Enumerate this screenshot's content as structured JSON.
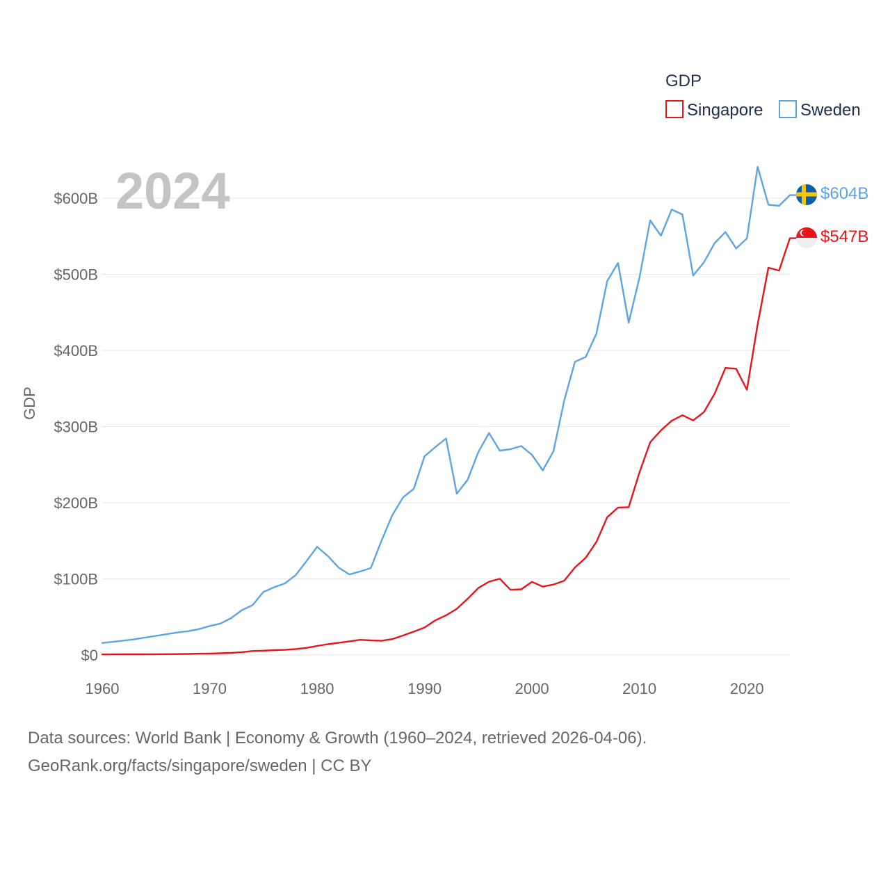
{
  "chart_data": {
    "type": "line",
    "title": "GDP",
    "year_display": "2024",
    "ylabel": "GDP",
    "xlabel": "",
    "xlim": [
      1960,
      2024
    ],
    "ylim": [
      0,
      650
    ],
    "x_ticks": [
      1960,
      1970,
      1980,
      1990,
      2000,
      2010,
      2020
    ],
    "x_tick_labels": [
      "1960",
      "1970",
      "1980",
      "1990",
      "2000",
      "2010",
      "2020"
    ],
    "y_ticks": [
      0,
      100,
      200,
      300,
      400,
      500,
      600
    ],
    "y_tick_labels": [
      "$0",
      "$100B",
      "$200B",
      "$300B",
      "$400B",
      "$500B",
      "$600B"
    ],
    "grid": true,
    "legend_position": "top-right",
    "x": [
      1960,
      1961,
      1962,
      1963,
      1964,
      1965,
      1966,
      1967,
      1968,
      1969,
      1970,
      1971,
      1972,
      1973,
      1974,
      1975,
      1976,
      1977,
      1978,
      1979,
      1980,
      1981,
      1982,
      1983,
      1984,
      1985,
      1986,
      1987,
      1988,
      1989,
      1990,
      1991,
      1992,
      1993,
      1994,
      1995,
      1996,
      1997,
      1998,
      1999,
      2000,
      2001,
      2002,
      2003,
      2004,
      2005,
      2006,
      2007,
      2008,
      2009,
      2010,
      2011,
      2012,
      2013,
      2014,
      2015,
      2016,
      2017,
      2018,
      2019,
      2020,
      2021,
      2022,
      2023,
      2024
    ],
    "series": [
      {
        "name": "Singapore",
        "color": "#e8141c",
        "end_label": "$547B",
        "flag": "singapore-flag",
        "values": [
          0.7,
          0.8,
          0.9,
          0.9,
          0.9,
          1.0,
          1.1,
          1.2,
          1.4,
          1.7,
          1.9,
          2.3,
          2.7,
          3.7,
          5.2,
          5.7,
          6.4,
          6.8,
          7.8,
          9.3,
          11.9,
          14.2,
          16.1,
          17.9,
          19.9,
          19.2,
          18.6,
          20.9,
          25.6,
          30.7,
          36.1,
          45.5,
          52.1,
          60.6,
          73.7,
          87.9,
          96.3,
          100.1,
          85.7,
          86.3,
          96.1,
          89.8,
          92.5,
          97.6,
          115.0,
          127.8,
          148.6,
          180.9,
          193.6,
          194.2,
          239.8,
          279.4,
          295.1,
          307.6,
          314.9,
          308.0,
          319.0,
          343.2,
          377.0,
          376.0,
          348.4,
          434.1,
          508.7,
          504.9,
          547.4
        ]
      },
      {
        "name": "Sweden",
        "color": "#5ca4e2",
        "end_label": "$604B",
        "flag": "sweden-flag",
        "values": [
          15.8,
          17.3,
          18.9,
          20.6,
          22.9,
          25.1,
          27.3,
          29.6,
          31.2,
          34.0,
          38.0,
          41.3,
          48.4,
          58.9,
          65.5,
          82.7,
          89.0,
          94.0,
          104.8,
          123.0,
          142.1,
          130.0,
          114.8,
          105.8,
          109.7,
          114.2,
          150.4,
          183.6,
          207.0,
          218.3,
          261.0,
          273.0,
          284.3,
          211.9,
          229.9,
          266.4,
          291.6,
          268.4,
          270.3,
          274.4,
          262.8,
          242.4,
          267.7,
          334.3,
          385.1,
          391.4,
          422.1,
          491.1,
          514.9,
          436.5,
          495.8,
          570.8,
          550.7,
          585.0,
          578.5,
          498.4,
          515.7,
          541.0,
          555.5,
          533.9,
          547.1,
          641.2,
          591.4,
          590.0,
          604.0
        ]
      }
    ]
  },
  "footer": {
    "line1": "Data sources: World Bank | Economy & Growth (1960–2024, retrieved 2026-04-06).",
    "line2": "GeoRank.org/facts/singapore/sweden | CC BY"
  }
}
